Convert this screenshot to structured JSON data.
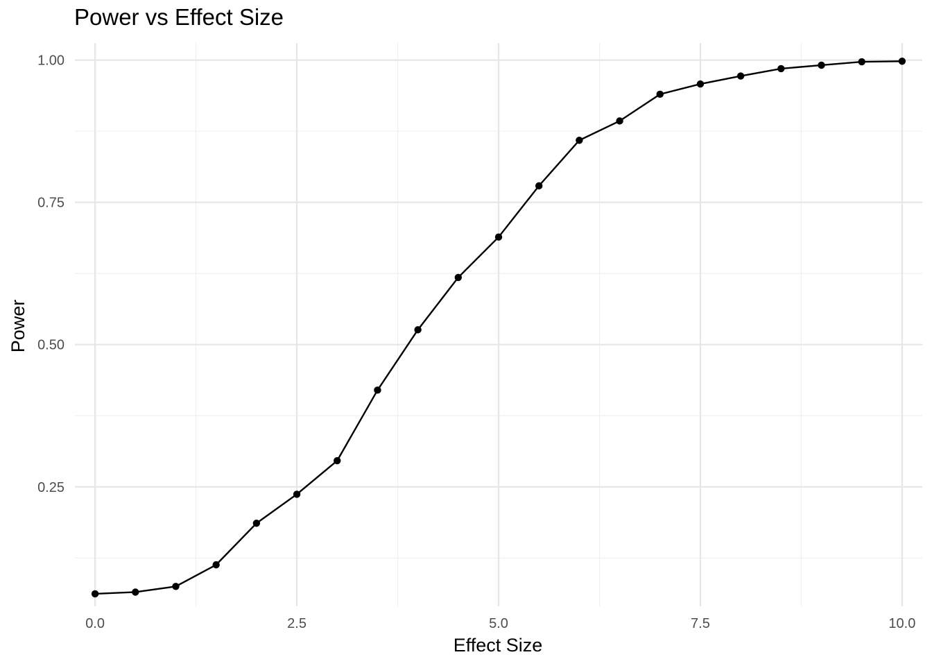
{
  "chart_data": {
    "type": "line",
    "title": "Power vs Effect Size",
    "xlabel": "Effect Size",
    "ylabel": "Power",
    "xlim": [
      -0.25,
      10.25
    ],
    "ylim": [
      0.04,
      1.03
    ],
    "x_ticks": [
      0,
      2.5,
      5,
      7.5,
      10
    ],
    "x_tick_labels": [
      "0.0",
      "2.5",
      "5.0",
      "7.5",
      "10.0"
    ],
    "y_ticks": [
      0.25,
      0.5,
      0.75,
      1.0
    ],
    "y_tick_labels": [
      "0.25",
      "0.50",
      "0.75",
      "1.00"
    ],
    "x_minor_ticks": [
      1.25,
      3.75,
      6.25,
      8.75
    ],
    "y_minor_ticks": [
      0.125,
      0.375,
      0.625,
      0.875
    ],
    "grid": true,
    "legend": false,
    "series": [
      {
        "color": "#000000",
        "x": [
          0,
          0.5,
          1,
          1.5,
          2,
          2.5,
          3,
          3.5,
          4,
          4.5,
          5,
          5.5,
          6,
          6.5,
          7,
          7.5,
          8,
          8.5,
          9,
          9.5,
          10
        ],
        "y": [
          0.062,
          0.065,
          0.075,
          0.113,
          0.186,
          0.237,
          0.296,
          0.42,
          0.526,
          0.618,
          0.689,
          0.779,
          0.859,
          0.893,
          0.94,
          0.958,
          0.972,
          0.985,
          0.991,
          0.997,
          0.998
        ]
      }
    ]
  }
}
